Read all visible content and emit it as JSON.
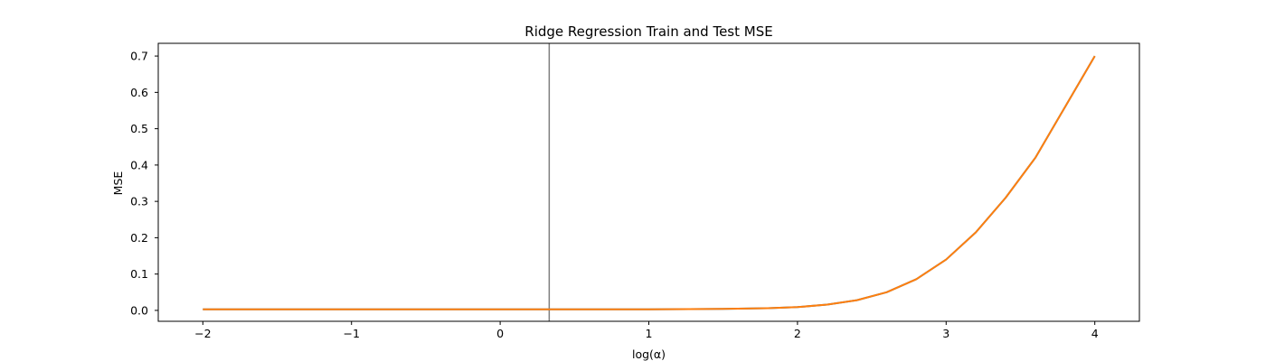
{
  "chart_data": {
    "type": "line",
    "title": "Ridge Regression Train and Test MSE",
    "xlabel": "log(α)",
    "ylabel": "MSE",
    "xlim": [
      -2.3,
      4.3
    ],
    "ylim": [
      -0.03,
      0.735
    ],
    "xticks": [
      -2,
      -1,
      0,
      1,
      2,
      3,
      4
    ],
    "xtick_labels": [
      "−2",
      "−1",
      "0",
      "1",
      "2",
      "3",
      "4"
    ],
    "yticks": [
      0.0,
      0.1,
      0.2,
      0.3,
      0.4,
      0.5,
      0.6,
      0.7
    ],
    "ytick_labels": [
      "0.0",
      "0.1",
      "0.2",
      "0.3",
      "0.4",
      "0.5",
      "0.6",
      "0.7"
    ],
    "grid": false,
    "vline": {
      "x": 0.33,
      "color": "#7f7f7f"
    },
    "series": [
      {
        "color": "#1f77b4",
        "x": [
          -2.0,
          -1.5,
          -1.0,
          -0.5,
          0.0,
          0.5,
          1.0,
          1.5,
          1.8,
          2.0,
          2.2,
          2.4,
          2.6,
          2.8,
          3.0,
          3.2,
          3.4,
          3.6,
          3.8,
          4.0
        ],
        "y": [
          0.003,
          0.003,
          0.003,
          0.003,
          0.003,
          0.003,
          0.003,
          0.004,
          0.006,
          0.009,
          0.016,
          0.028,
          0.05,
          0.086,
          0.14,
          0.215,
          0.31,
          0.42,
          0.56,
          0.7
        ]
      },
      {
        "color": "#ff7f0e",
        "x": [
          -2.0,
          -1.5,
          -1.0,
          -0.5,
          0.0,
          0.5,
          1.0,
          1.5,
          1.8,
          2.0,
          2.2,
          2.4,
          2.6,
          2.8,
          3.0,
          3.2,
          3.4,
          3.6,
          3.8,
          4.0
        ],
        "y": [
          0.003,
          0.003,
          0.003,
          0.003,
          0.003,
          0.003,
          0.003,
          0.004,
          0.006,
          0.009,
          0.016,
          0.028,
          0.05,
          0.086,
          0.14,
          0.215,
          0.31,
          0.42,
          0.56,
          0.7
        ]
      }
    ]
  }
}
